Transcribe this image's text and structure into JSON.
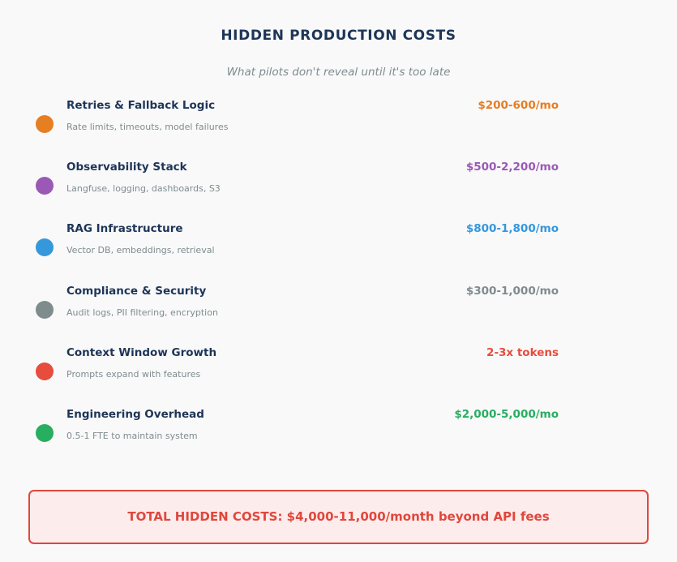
{
  "header": {
    "title": "HIDDEN PRODUCTION COSTS",
    "subtitle": "What pilots don't reveal until it's too late"
  },
  "items": [
    {
      "name": "Retries & Fallback Logic",
      "description": "Rate limits, timeouts, model failures",
      "cost": "$200-600/mo",
      "color": "#e67e22"
    },
    {
      "name": "Observability Stack",
      "description": "Langfuse, logging, dashboards, S3",
      "cost": "$500-2,200/mo",
      "color": "#9b59b6"
    },
    {
      "name": "RAG Infrastructure",
      "description": "Vector DB, embeddings, retrieval",
      "cost": "$800-1,800/mo",
      "color": "#3498db"
    },
    {
      "name": "Compliance & Security",
      "description": "Audit logs, PII filtering, encryption",
      "cost": "$300-1,000/mo",
      "color": "#7f8c8d"
    },
    {
      "name": "Context Window Growth",
      "description": "Prompts expand with features",
      "cost": "2-3x tokens",
      "color": "#e74c3c"
    },
    {
      "name": "Engineering Overhead",
      "description": "0.5-1 FTE to maintain system",
      "cost": "$2,000-5,000/mo",
      "color": "#27ae60"
    }
  ],
  "total": {
    "text": "TOTAL HIDDEN COSTS: $4,000-11,000/month beyond API fees",
    "color": "#e0473d",
    "background": "#fdecec"
  }
}
